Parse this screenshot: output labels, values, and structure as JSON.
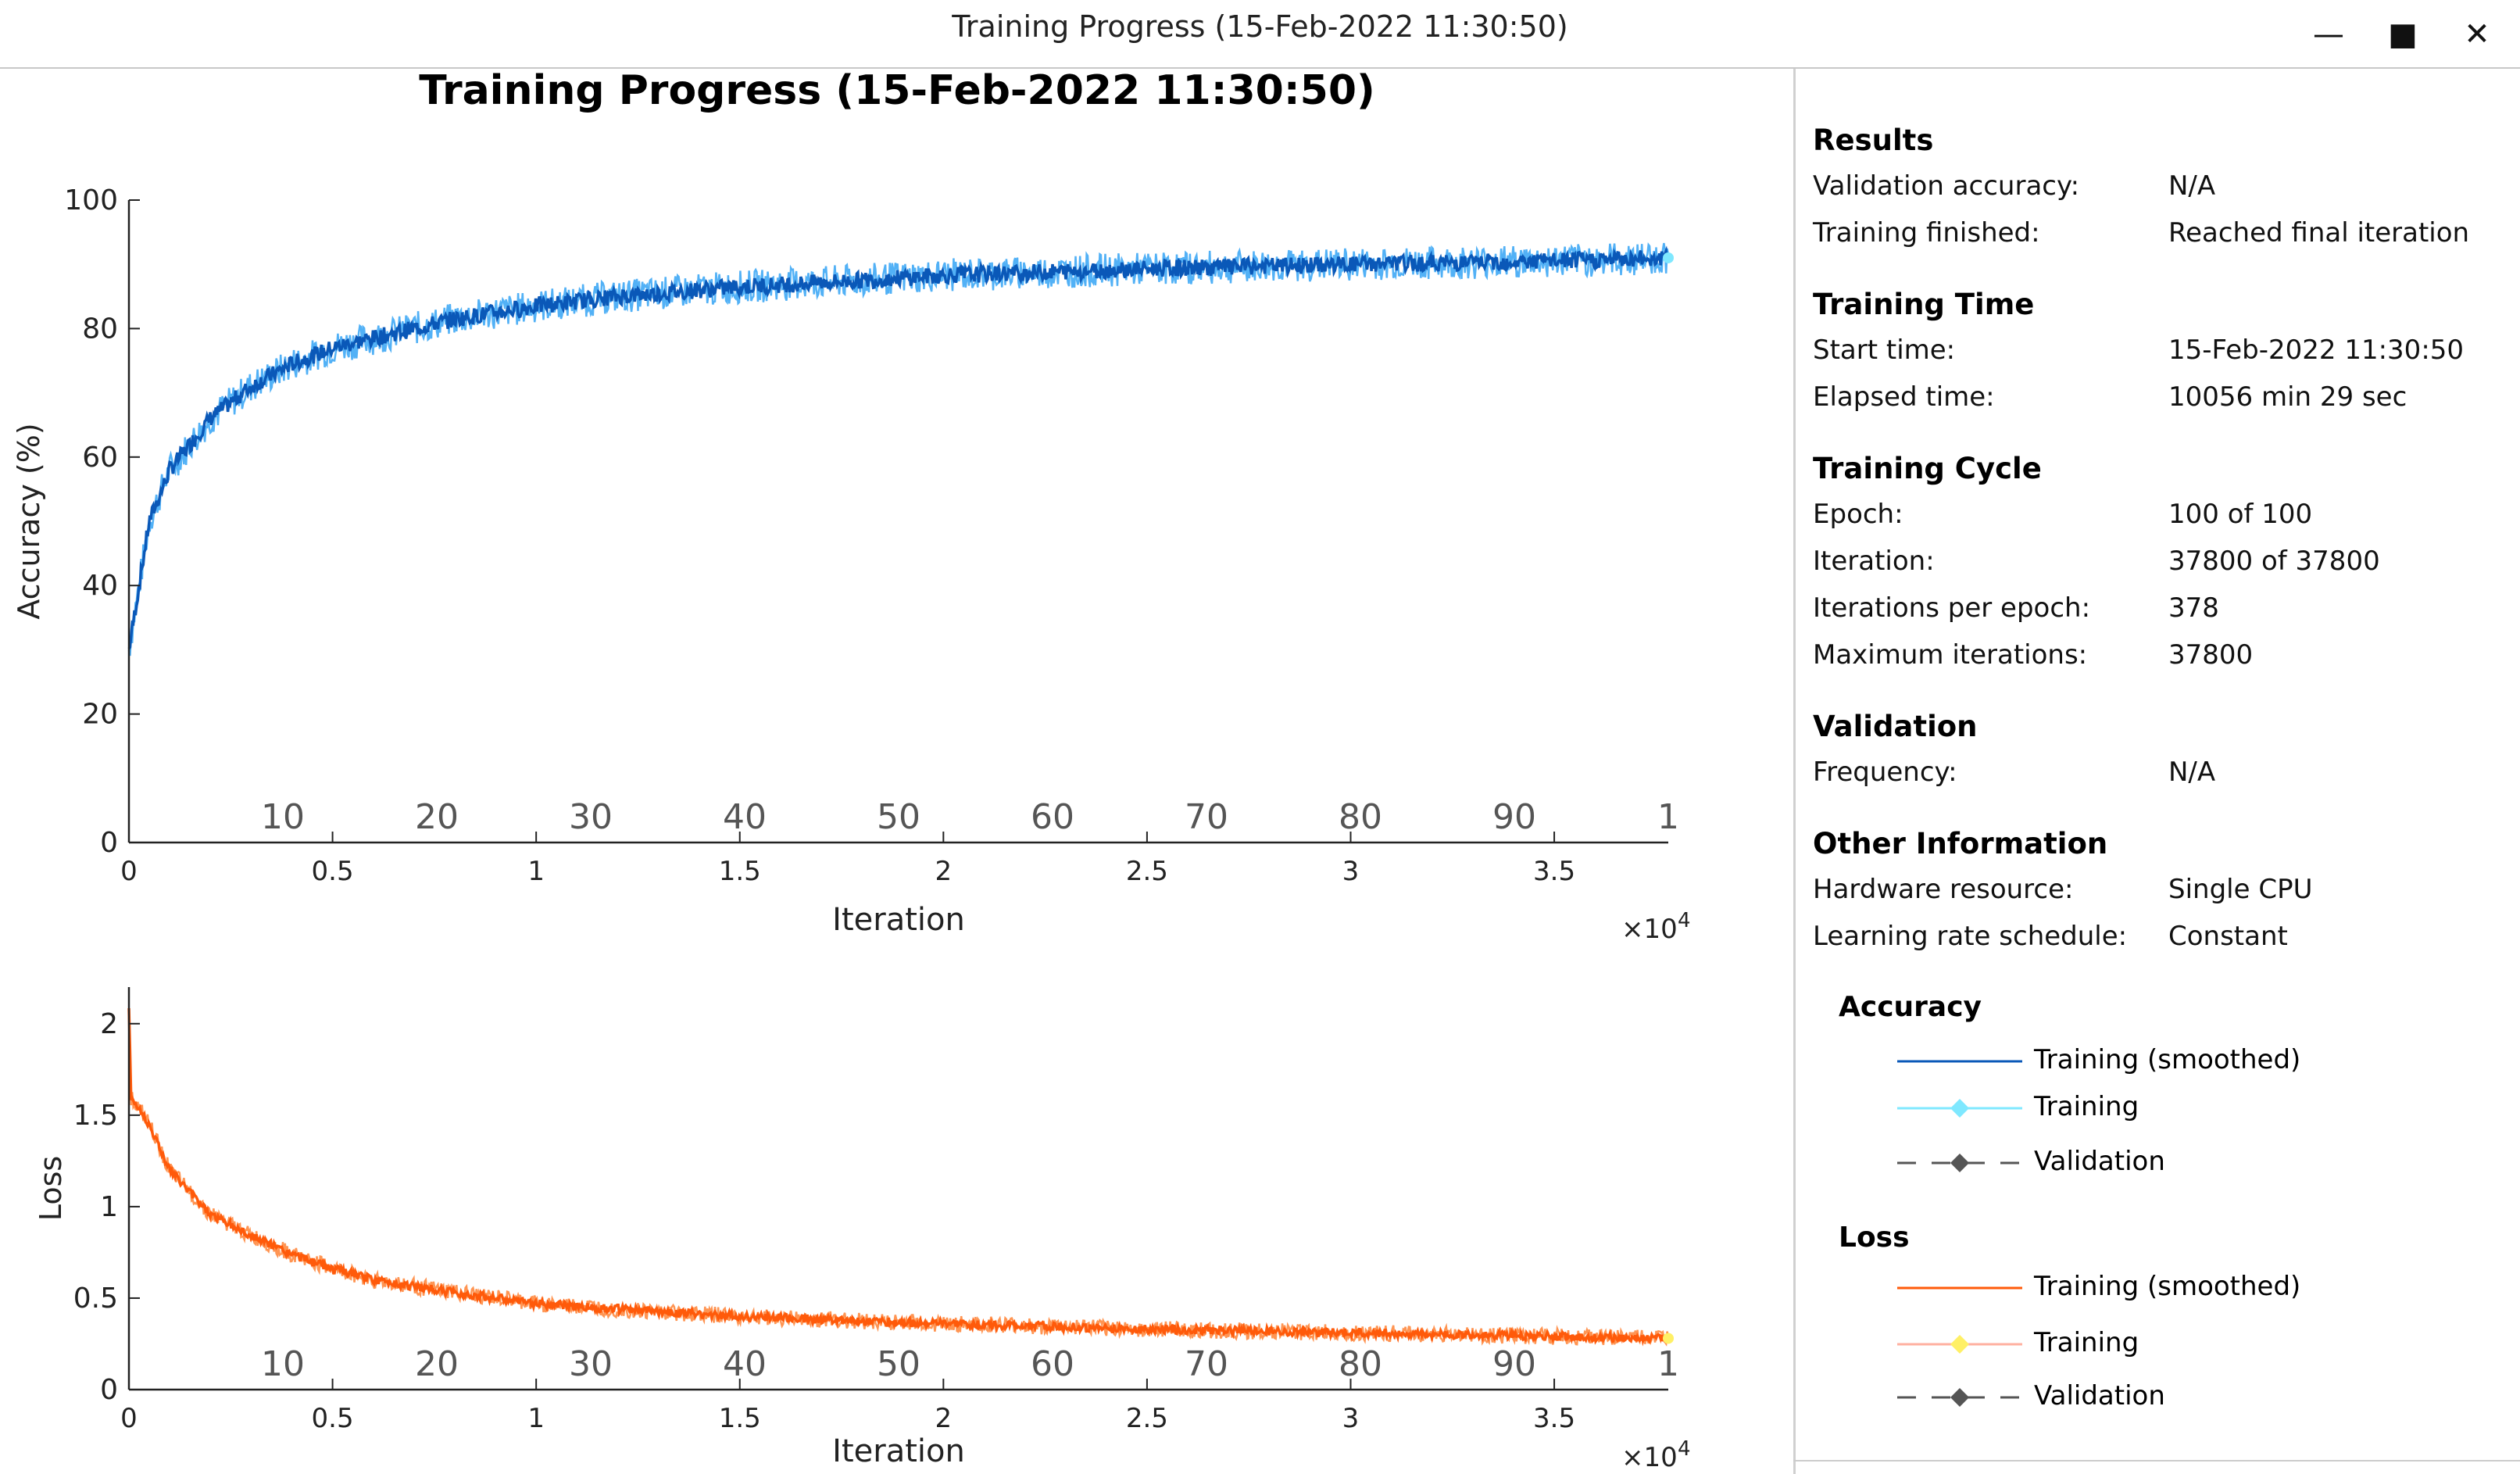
{
  "window": {
    "title": "Training Progress (15-Feb-2022 11:30:50)"
  },
  "colors": {
    "accuracy_smoothed": "#0a58b8",
    "accuracy_raw": "#3fa9f5",
    "accuracy_legend_raw": "#7fe8ff",
    "loss_smoothed": "#ff5a0a",
    "loss_raw": "#ff8a40",
    "loss_legend_raw": "#ffb0a0",
    "loss_marker": "#fff066",
    "validation": "#555555"
  },
  "chart_data": [
    {
      "id": "accuracy",
      "type": "line",
      "title": "Training Progress (15-Feb-2022 11:30:50)",
      "xlabel": "Iteration",
      "ylabel": "Accuracy (%)",
      "xlim": [
        0,
        37800
      ],
      "ylim": [
        0,
        100
      ],
      "x_ticks": [
        "0",
        "0.5",
        "1",
        "1.5",
        "2",
        "2.5",
        "3",
        "3.5"
      ],
      "x_tick_values": [
        0,
        5000,
        10000,
        15000,
        20000,
        25000,
        30000,
        35000
      ],
      "x_exponent": "×10",
      "x_exponent_power": "4",
      "y_ticks": [
        "0",
        "20",
        "40",
        "60",
        "80",
        "100"
      ],
      "y_tick_values": [
        0,
        20,
        40,
        60,
        80,
        100
      ],
      "epoch_labels": [
        "10",
        "20",
        "30",
        "40",
        "50",
        "60",
        "70",
        "80",
        "90",
        "1"
      ],
      "epoch_positions": [
        3780,
        7560,
        11340,
        15120,
        18900,
        22680,
        26460,
        30240,
        34020,
        37800
      ],
      "series": [
        {
          "name": "Training (smoothed)",
          "x": [
            0,
            500,
            1000,
            2000,
            3000,
            4000,
            5000,
            6000,
            8000,
            10000,
            12000,
            15000,
            18000,
            20000,
            25000,
            30000,
            35000,
            37800
          ],
          "values": [
            30,
            50,
            58,
            66,
            71,
            74.5,
            77,
            78.5,
            81.5,
            83.5,
            85,
            86.5,
            87.5,
            88.3,
            89.3,
            90,
            90.5,
            91
          ],
          "noise": 2.6
        }
      ]
    },
    {
      "id": "loss",
      "type": "line",
      "title": "",
      "xlabel": "Iteration",
      "ylabel": "Loss",
      "xlim": [
        0,
        37800
      ],
      "ylim": [
        0,
        2.2
      ],
      "x_ticks": [
        "0",
        "0.5",
        "1",
        "1.5",
        "2",
        "2.5",
        "3",
        "3.5"
      ],
      "x_tick_values": [
        0,
        5000,
        10000,
        15000,
        20000,
        25000,
        30000,
        35000
      ],
      "x_exponent": "×10",
      "x_exponent_power": "4",
      "y_ticks": [
        "0",
        "0.5",
        "1",
        "1.5",
        "2"
      ],
      "y_tick_values": [
        0,
        0.5,
        1,
        1.5,
        2
      ],
      "epoch_labels": [
        "10",
        "20",
        "30",
        "40",
        "50",
        "60",
        "70",
        "80",
        "90",
        "1"
      ],
      "epoch_positions": [
        3780,
        7560,
        11340,
        15120,
        18900,
        22680,
        26460,
        30240,
        34020,
        37800
      ],
      "series": [
        {
          "name": "Training (smoothed)",
          "x": [
            0,
            50,
            500,
            1000,
            2000,
            3000,
            4000,
            5000,
            6000,
            8000,
            10000,
            12000,
            15000,
            20000,
            25000,
            30000,
            35000,
            37800
          ],
          "values": [
            2.1,
            1.6,
            1.45,
            1.2,
            0.96,
            0.84,
            0.74,
            0.66,
            0.6,
            0.53,
            0.47,
            0.44,
            0.4,
            0.36,
            0.33,
            0.31,
            0.29,
            0.28
          ],
          "noise": 0.045
        }
      ]
    }
  ],
  "panel": {
    "results": {
      "heading": "Results",
      "rows": [
        {
          "label": "Validation accuracy:",
          "value": "N/A"
        },
        {
          "label": "Training finished:",
          "value": "Reached final iteration"
        }
      ]
    },
    "training_time": {
      "heading": "Training Time",
      "rows": [
        {
          "label": "Start time:",
          "value": "15-Feb-2022 11:30:50"
        },
        {
          "label": "Elapsed time:",
          "value": "10056 min 29 sec"
        }
      ]
    },
    "training_cycle": {
      "heading": "Training Cycle",
      "rows": [
        {
          "label": "Epoch:",
          "value": "100 of 100"
        },
        {
          "label": "Iteration:",
          "value": "37800 of 37800"
        },
        {
          "label": "Iterations per epoch:",
          "value": "378"
        },
        {
          "label": "Maximum iterations:",
          "value": "37800"
        }
      ]
    },
    "validation": {
      "heading": "Validation",
      "rows": [
        {
          "label": "Frequency:",
          "value": "N/A"
        }
      ]
    },
    "other": {
      "heading": "Other Information",
      "rows": [
        {
          "label": "Hardware resource:",
          "value": "Single CPU"
        },
        {
          "label": "Learning rate schedule:",
          "value": "Constant"
        }
      ]
    },
    "legend_accuracy": {
      "heading": "Accuracy",
      "items": [
        "Training (smoothed)",
        "Training",
        "Validation"
      ]
    },
    "legend_loss": {
      "heading": "Loss",
      "items": [
        "Training (smoothed)",
        "Training",
        "Validation"
      ]
    }
  }
}
